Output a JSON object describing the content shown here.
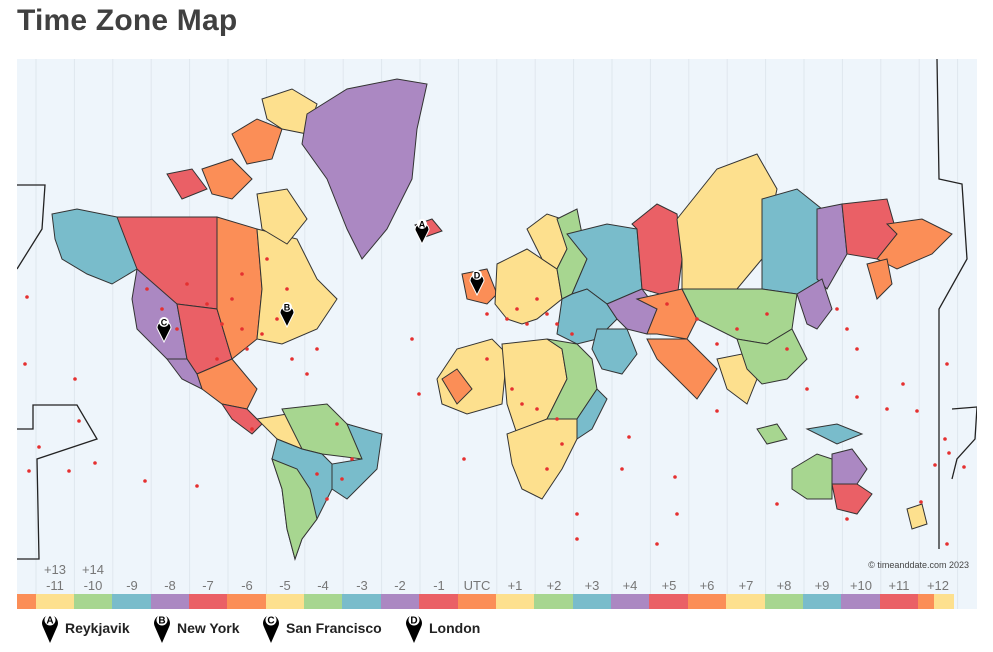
{
  "page": {
    "title": "Time Zone Map"
  },
  "copyright": "© timeanddate.com 2023",
  "timezones": {
    "top_labels": [
      "+13",
      "+14"
    ],
    "bottom_labels": [
      "-11",
      "-10",
      "-9",
      "-8",
      "-7",
      "-6",
      "-5",
      "-4",
      "-3",
      "-2",
      "-1",
      "UTC",
      "+1",
      "+2",
      "+3",
      "+4",
      "+5",
      "+6",
      "+7",
      "+8",
      "+9",
      "+10",
      "+11",
      "+12"
    ],
    "colors": [
      "#fb8e57",
      "#fde08e",
      "#a7d690",
      "#79bccb",
      "#ab88c2",
      "#ea6066",
      "#fb8e57",
      "#fde08e",
      "#a7d690",
      "#79bccb",
      "#ab88c2",
      "#ea6066",
      "#fb8e57",
      "#fde08e",
      "#a7d690",
      "#79bccb",
      "#ab88c2",
      "#ea6066",
      "#fb8e57",
      "#fde08e",
      "#a7d690",
      "#79bccb",
      "#ab88c2",
      "#ea6066",
      "#fb8e57",
      "#fde08e"
    ]
  },
  "legend": [
    {
      "letter": "A",
      "city": "Reykjavik"
    },
    {
      "letter": "B",
      "city": "New York"
    },
    {
      "letter": "C",
      "city": "San Francisco"
    },
    {
      "letter": "D",
      "city": "London"
    }
  ],
  "map": {
    "ocean_color": "#eef5fb",
    "pin_color": "#000000",
    "dot_color": "#e53030"
  }
}
